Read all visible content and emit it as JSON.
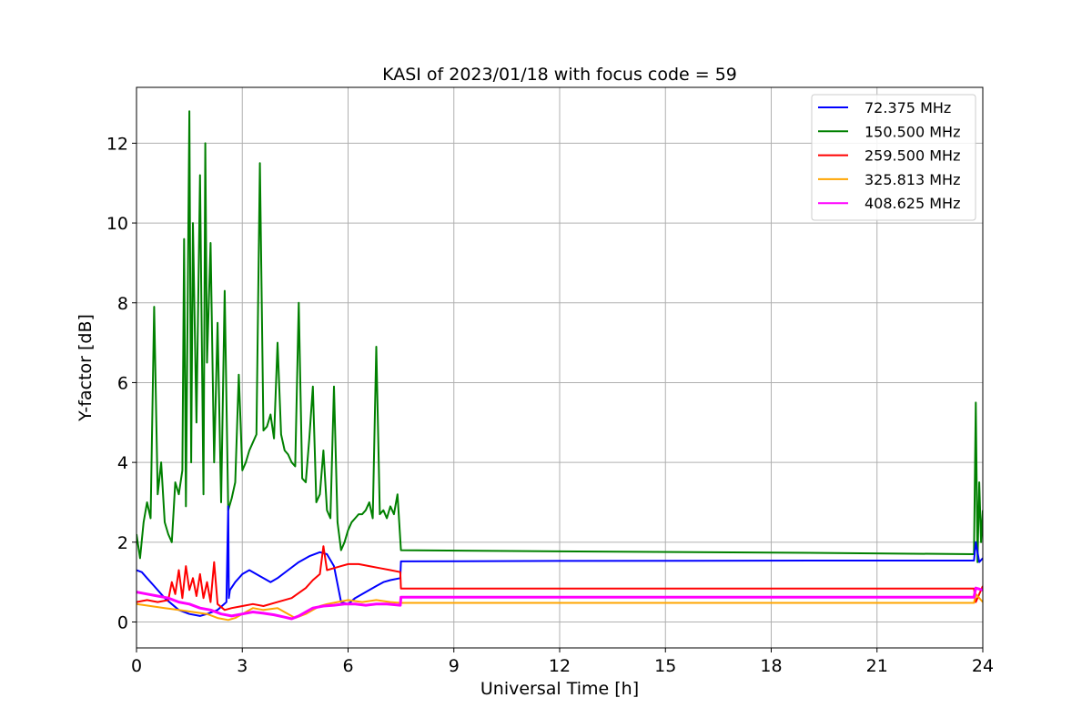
{
  "chart_data": {
    "type": "line",
    "title": "KASI of 2023/01/18 with focus code = 59",
    "xlabel": "Universal Time [h]",
    "ylabel": "Y-factor [dB]",
    "xlim": [
      0,
      24
    ],
    "ylim": [
      -0.65,
      13.4
    ],
    "xticks": [
      0,
      3,
      6,
      9,
      12,
      15,
      18,
      21,
      24
    ],
    "yticks": [
      0,
      2,
      4,
      6,
      8,
      10,
      12
    ],
    "grid": true,
    "legend_position": "top-right",
    "series": [
      {
        "name": "  72.375 MHz",
        "color": "#0000ff",
        "x": [
          0.0,
          0.15,
          0.3,
          0.5,
          0.8,
          1.0,
          1.2,
          1.5,
          1.8,
          2.0,
          2.3,
          2.55,
          2.6,
          2.62,
          2.65,
          2.8,
          3.0,
          3.2,
          3.5,
          3.8,
          4.0,
          4.3,
          4.6,
          4.9,
          5.2,
          5.4,
          5.6,
          5.8,
          6.0,
          6.2,
          6.5,
          6.8,
          7.0,
          7.2,
          7.48,
          7.5,
          12.0,
          20.0,
          23.75,
          23.8,
          23.9,
          24.0
        ],
        "y": [
          1.3,
          1.25,
          1.1,
          0.9,
          0.6,
          0.45,
          0.3,
          0.2,
          0.15,
          0.2,
          0.3,
          0.5,
          2.9,
          0.6,
          0.8,
          1.0,
          1.2,
          1.3,
          1.15,
          1.0,
          1.1,
          1.3,
          1.5,
          1.65,
          1.75,
          1.7,
          1.4,
          0.5,
          0.45,
          0.6,
          0.75,
          0.9,
          1.0,
          1.05,
          1.1,
          1.52,
          1.53,
          1.54,
          1.54,
          2.0,
          1.5,
          1.6
        ]
      },
      {
        "name": "150.500 MHz",
        "color": "#008000",
        "x": [
          0.0,
          0.1,
          0.2,
          0.3,
          0.4,
          0.5,
          0.6,
          0.7,
          0.8,
          0.9,
          1.0,
          1.1,
          1.2,
          1.3,
          1.35,
          1.4,
          1.5,
          1.55,
          1.6,
          1.7,
          1.8,
          1.9,
          1.95,
          2.0,
          2.1,
          2.2,
          2.3,
          2.4,
          2.5,
          2.6,
          2.7,
          2.8,
          2.9,
          3.0,
          3.1,
          3.2,
          3.3,
          3.4,
          3.5,
          3.6,
          3.7,
          3.8,
          3.9,
          4.0,
          4.1,
          4.2,
          4.3,
          4.4,
          4.5,
          4.6,
          4.7,
          4.8,
          4.9,
          5.0,
          5.1,
          5.2,
          5.3,
          5.4,
          5.5,
          5.6,
          5.7,
          5.8,
          5.9,
          6.0,
          6.1,
          6.2,
          6.3,
          6.4,
          6.5,
          6.6,
          6.7,
          6.8,
          6.9,
          7.0,
          7.1,
          7.2,
          7.3,
          7.4,
          7.5,
          12.0,
          18.0,
          23.75,
          23.8,
          23.85,
          23.9,
          23.95,
          24.0
        ],
        "y": [
          2.2,
          1.6,
          2.5,
          3.0,
          2.6,
          7.9,
          3.2,
          4.0,
          2.5,
          2.2,
          2.0,
          3.5,
          3.2,
          3.8,
          9.6,
          2.9,
          12.8,
          4.0,
          10.0,
          5.0,
          11.2,
          3.2,
          12.0,
          6.5,
          9.5,
          4.0,
          7.5,
          3.0,
          8.3,
          2.8,
          3.1,
          3.5,
          6.2,
          3.8,
          4.0,
          4.3,
          4.5,
          4.7,
          11.5,
          4.8,
          4.9,
          5.2,
          4.6,
          7.0,
          4.7,
          4.3,
          4.2,
          4.0,
          3.9,
          8.0,
          3.6,
          3.5,
          4.6,
          5.9,
          3.0,
          3.2,
          4.3,
          2.8,
          2.6,
          5.9,
          2.5,
          1.8,
          2.0,
          2.3,
          2.5,
          2.6,
          2.7,
          2.7,
          2.8,
          3.0,
          2.6,
          6.9,
          2.7,
          2.8,
          2.6,
          2.9,
          2.7,
          3.2,
          1.8,
          1.77,
          1.74,
          1.7,
          5.5,
          1.5,
          3.5,
          2.0,
          2.8
        ]
      },
      {
        "name": "259.500 MHz",
        "color": "#ff0000",
        "x": [
          0.0,
          0.3,
          0.6,
          0.9,
          1.0,
          1.1,
          1.2,
          1.3,
          1.4,
          1.5,
          1.6,
          1.7,
          1.8,
          1.9,
          2.0,
          2.1,
          2.2,
          2.3,
          2.5,
          2.7,
          3.0,
          3.3,
          3.6,
          4.0,
          4.4,
          4.8,
          5.0,
          5.2,
          5.3,
          5.4,
          5.6,
          5.8,
          6.0,
          6.3,
          6.6,
          6.9,
          7.2,
          7.48,
          7.5,
          12.0,
          20.0,
          23.75,
          23.8,
          24.0
        ],
        "y": [
          0.5,
          0.55,
          0.5,
          0.55,
          1.0,
          0.7,
          1.3,
          0.6,
          1.4,
          0.8,
          1.1,
          0.65,
          1.2,
          0.6,
          1.0,
          0.5,
          1.5,
          0.45,
          0.3,
          0.35,
          0.4,
          0.45,
          0.4,
          0.5,
          0.6,
          0.85,
          1.05,
          1.2,
          1.9,
          1.3,
          1.35,
          1.4,
          1.45,
          1.45,
          1.4,
          1.35,
          1.3,
          1.25,
          0.84,
          0.84,
          0.84,
          0.84,
          0.5,
          0.9
        ]
      },
      {
        "name": "325.813 MHz",
        "color": "#ffa500",
        "x": [
          0.0,
          0.4,
          0.8,
          1.2,
          1.6,
          2.0,
          2.3,
          2.6,
          2.8,
          3.0,
          3.3,
          3.6,
          4.0,
          4.3,
          4.5,
          4.8,
          5.0,
          5.2,
          5.4,
          5.7,
          6.0,
          6.4,
          6.8,
          7.2,
          7.48,
          7.5,
          12.0,
          20.0,
          23.75,
          23.8,
          24.0
        ],
        "y": [
          0.45,
          0.4,
          0.35,
          0.3,
          0.25,
          0.2,
          0.1,
          0.05,
          0.1,
          0.2,
          0.35,
          0.3,
          0.35,
          0.2,
          0.1,
          0.2,
          0.3,
          0.4,
          0.45,
          0.5,
          0.55,
          0.5,
          0.55,
          0.5,
          0.48,
          0.48,
          0.48,
          0.48,
          0.48,
          0.7,
          0.5
        ]
      },
      {
        "name": "408.625 MHz",
        "color": "#ff00ff",
        "x": [
          0.0,
          0.3,
          0.6,
          0.9,
          1.2,
          1.5,
          1.8,
          2.1,
          2.4,
          2.7,
          3.0,
          3.3,
          3.6,
          3.9,
          4.2,
          4.4,
          4.6,
          4.8,
          5.0,
          5.3,
          5.6,
          5.9,
          6.2,
          6.5,
          6.8,
          7.1,
          7.48,
          7.5,
          12.0,
          20.0,
          23.75,
          23.8,
          24.0
        ],
        "y": [
          0.75,
          0.7,
          0.65,
          0.6,
          0.5,
          0.45,
          0.35,
          0.3,
          0.2,
          0.15,
          0.2,
          0.25,
          0.22,
          0.18,
          0.12,
          0.08,
          0.15,
          0.25,
          0.35,
          0.4,
          0.42,
          0.45,
          0.45,
          0.42,
          0.45,
          0.45,
          0.42,
          0.62,
          0.62,
          0.62,
          0.62,
          0.85,
          0.8
        ]
      }
    ]
  }
}
